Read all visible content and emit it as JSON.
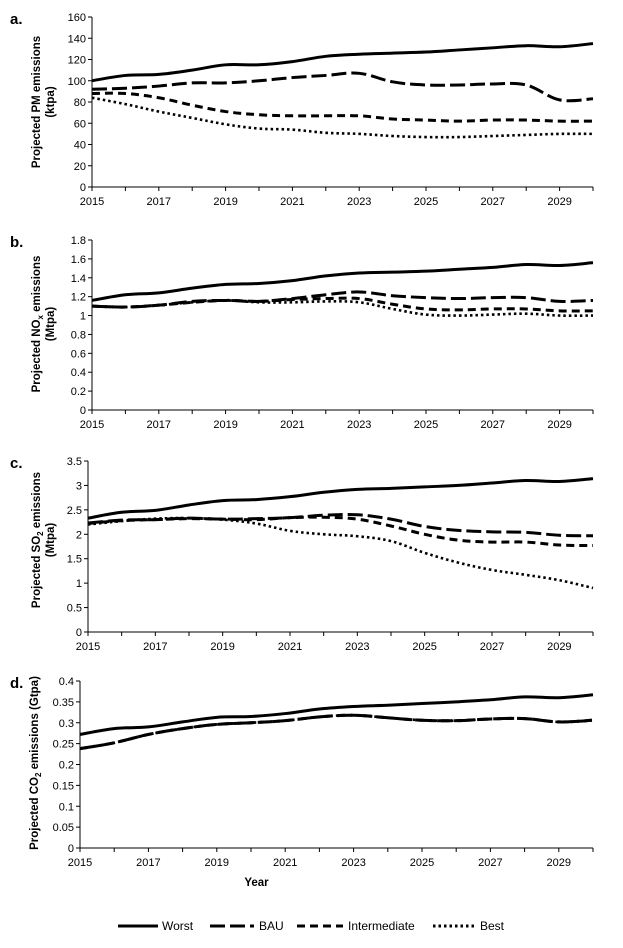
{
  "chart_data": [
    {
      "type": "line",
      "panel_label": "a.",
      "ylabel": "Projected PM emissions (ktpa)",
      "ylabel_lines": [
        "Projected PM emissions",
        "(ktpa)"
      ],
      "ylim": [
        0,
        160
      ],
      "yticks": [
        0,
        20,
        40,
        60,
        80,
        100,
        120,
        140,
        160
      ],
      "ytick_labels": [
        "0",
        "20",
        "40",
        "60",
        "80",
        "100",
        "120",
        "140",
        "160"
      ],
      "xlim": [
        2015,
        2030
      ],
      "xticks": [
        2015,
        2017,
        2019,
        2021,
        2023,
        2025,
        2027,
        2029
      ],
      "xtick_labels": [
        "2015",
        "2017",
        "2019",
        "2021",
        "2023",
        "2025",
        "2027",
        "2029"
      ],
      "x": [
        2015,
        2016,
        2017,
        2018,
        2019,
        2020,
        2021,
        2022,
        2023,
        2024,
        2025,
        2026,
        2027,
        2028,
        2029,
        2030
      ],
      "series": [
        {
          "name": "Worst",
          "values": [
            100,
            105,
            106,
            110,
            115,
            115,
            118,
            123,
            125,
            126,
            127,
            129,
            131,
            133,
            132,
            135
          ]
        },
        {
          "name": "BAU",
          "values": [
            92,
            93,
            95,
            98,
            98,
            100,
            103,
            105,
            107,
            99,
            96,
            96,
            97,
            96,
            82,
            83
          ]
        },
        {
          "name": "Intermediate",
          "values": [
            88,
            88,
            84,
            77,
            71,
            68,
            67,
            67,
            67,
            64,
            63,
            62,
            63,
            63,
            62,
            62
          ]
        },
        {
          "name": "Best",
          "values": [
            84,
            78,
            71,
            65,
            59,
            55,
            54,
            51,
            50,
            48,
            47,
            47,
            48,
            49,
            50,
            50
          ]
        }
      ]
    },
    {
      "type": "line",
      "panel_label": "b.",
      "ylabel": "Projected NOx emissions (Mtpa)",
      "ylabel_main": "Projected NO",
      "ylabel_sub": "x",
      "ylabel_rest": " emissions",
      "ylabel_unit": "(Mtpa)",
      "ylim": [
        0,
        1.8
      ],
      "yticks": [
        0,
        0.2,
        0.4,
        0.6,
        0.8,
        1,
        1.2,
        1.4,
        1.6,
        1.8
      ],
      "ytick_labels": [
        "0",
        "0.2",
        "0.4",
        "0.6",
        "0.8",
        "1",
        "1.2",
        "1.4",
        "1.6",
        "1.8"
      ],
      "xlim": [
        2015,
        2030
      ],
      "xticks": [
        2015,
        2017,
        2019,
        2021,
        2023,
        2025,
        2027,
        2029
      ],
      "xtick_labels": [
        "2015",
        "2017",
        "2019",
        "2021",
        "2023",
        "2025",
        "2027",
        "2029"
      ],
      "x": [
        2015,
        2016,
        2017,
        2018,
        2019,
        2020,
        2021,
        2022,
        2023,
        2024,
        2025,
        2026,
        2027,
        2028,
        2029,
        2030
      ],
      "series": [
        {
          "name": "Worst",
          "values": [
            1.16,
            1.22,
            1.24,
            1.29,
            1.33,
            1.34,
            1.37,
            1.42,
            1.45,
            1.46,
            1.47,
            1.49,
            1.51,
            1.54,
            1.53,
            1.56
          ]
        },
        {
          "name": "BAU",
          "values": [
            1.1,
            1.09,
            1.11,
            1.15,
            1.16,
            1.15,
            1.18,
            1.22,
            1.25,
            1.21,
            1.19,
            1.18,
            1.19,
            1.19,
            1.15,
            1.16
          ]
        },
        {
          "name": "Intermediate",
          "values": [
            1.1,
            1.09,
            1.11,
            1.14,
            1.16,
            1.15,
            1.17,
            1.18,
            1.18,
            1.12,
            1.07,
            1.06,
            1.07,
            1.07,
            1.05,
            1.05
          ]
        },
        {
          "name": "Best",
          "values": [
            1.1,
            1.09,
            1.11,
            1.14,
            1.16,
            1.14,
            1.14,
            1.15,
            1.14,
            1.07,
            1.01,
            1.0,
            1.01,
            1.02,
            1.0,
            1.0
          ]
        }
      ]
    },
    {
      "type": "line",
      "panel_label": "c.",
      "ylabel": "Projected SO2 emissions (Mtpa)",
      "ylabel_main": "Projected SO",
      "ylabel_sub": "2",
      "ylabel_rest": " emissions",
      "ylabel_unit": "(Mtpa)",
      "ylim": [
        0,
        3.5
      ],
      "yticks": [
        0,
        0.5,
        1,
        1.5,
        2,
        2.5,
        3,
        3.5
      ],
      "ytick_labels": [
        "0",
        "0.5",
        "1",
        "1.5",
        "2",
        "2.5",
        "3",
        "3.5"
      ],
      "xlim": [
        2015,
        2030
      ],
      "xticks": [
        2015,
        2017,
        2019,
        2021,
        2023,
        2025,
        2027,
        2029
      ],
      "xtick_labels": [
        "2015",
        "2017",
        "2019",
        "2021",
        "2023",
        "2025",
        "2027",
        "2029"
      ],
      "x": [
        2015,
        2016,
        2017,
        2018,
        2019,
        2020,
        2021,
        2022,
        2023,
        2024,
        2025,
        2026,
        2027,
        2028,
        2029,
        2030
      ],
      "series": [
        {
          "name": "Worst",
          "values": [
            2.33,
            2.45,
            2.49,
            2.6,
            2.69,
            2.71,
            2.77,
            2.86,
            2.92,
            2.94,
            2.97,
            3.0,
            3.05,
            3.1,
            3.08,
            3.14
          ]
        },
        {
          "name": "BAU",
          "values": [
            2.23,
            2.29,
            2.3,
            2.33,
            2.31,
            2.32,
            2.34,
            2.39,
            2.4,
            2.31,
            2.16,
            2.08,
            2.05,
            2.04,
            1.98,
            1.97
          ]
        },
        {
          "name": "Intermediate",
          "values": [
            2.22,
            2.28,
            2.3,
            2.32,
            2.31,
            2.3,
            2.34,
            2.35,
            2.31,
            2.17,
            2.0,
            1.88,
            1.84,
            1.84,
            1.78,
            1.77
          ]
        },
        {
          "name": "Best",
          "values": [
            2.2,
            2.27,
            2.32,
            2.33,
            2.3,
            2.22,
            2.07,
            2.0,
            1.96,
            1.86,
            1.62,
            1.42,
            1.27,
            1.17,
            1.06,
            0.9
          ]
        }
      ]
    },
    {
      "type": "line",
      "panel_label": "d.",
      "ylabel": "Projected CO2 emissions (Gtpa)",
      "ylabel_main": "Projected CO",
      "ylabel_sub": "2",
      "ylabel_rest": " emissions (Gtpa)",
      "xlabel": "Year",
      "ylim": [
        0,
        0.4
      ],
      "yticks": [
        0,
        0.05,
        0.1,
        0.15,
        0.2,
        0.25,
        0.3,
        0.35,
        0.4
      ],
      "ytick_labels": [
        "0",
        "0.05",
        "0.1",
        "0.15",
        "0.2",
        "0.25",
        "0.3",
        "0.35",
        "0.4"
      ],
      "xlim": [
        2015,
        2030
      ],
      "xticks": [
        2015,
        2017,
        2019,
        2021,
        2023,
        2025,
        2027,
        2029
      ],
      "xtick_labels": [
        "2015",
        "2017",
        "2019",
        "2021",
        "2023",
        "2025",
        "2027",
        "2029"
      ],
      "x": [
        2015,
        2016,
        2017,
        2018,
        2019,
        2020,
        2021,
        2022,
        2023,
        2024,
        2025,
        2026,
        2027,
        2028,
        2029,
        2030
      ],
      "series": [
        {
          "name": "Worst",
          "values": [
            0.272,
            0.286,
            0.29,
            0.302,
            0.313,
            0.315,
            0.322,
            0.333,
            0.339,
            0.342,
            0.346,
            0.35,
            0.355,
            0.362,
            0.36,
            0.367
          ]
        },
        {
          "name": "BAU",
          "values": [
            0.238,
            0.252,
            0.272,
            0.286,
            0.296,
            0.3,
            0.305,
            0.314,
            0.318,
            0.312,
            0.306,
            0.305,
            0.309,
            0.31,
            0.302,
            0.306
          ]
        },
        {
          "name": "Intermediate",
          "values": [
            0.238,
            0.252,
            0.272,
            0.286,
            0.296,
            0.3,
            0.305,
            0.314,
            0.318,
            0.312,
            0.306,
            0.305,
            0.309,
            0.31,
            0.302,
            0.306
          ]
        },
        {
          "name": "Best",
          "values": [
            0.238,
            0.252,
            0.272,
            0.286,
            0.296,
            0.3,
            0.305,
            0.314,
            0.318,
            0.312,
            0.306,
            0.305,
            0.309,
            0.31,
            0.302,
            0.306
          ]
        }
      ]
    }
  ],
  "legend": {
    "placement": "bottom",
    "items": [
      {
        "label": "Worst",
        "style": "solid"
      },
      {
        "label": "BAU",
        "style": "long-dash"
      },
      {
        "label": "Intermediate",
        "style": "dash"
      },
      {
        "label": "Best",
        "style": "dotted"
      }
    ]
  },
  "colors": {
    "line": "#000000",
    "axis": "#000000",
    "background": "#ffffff"
  }
}
